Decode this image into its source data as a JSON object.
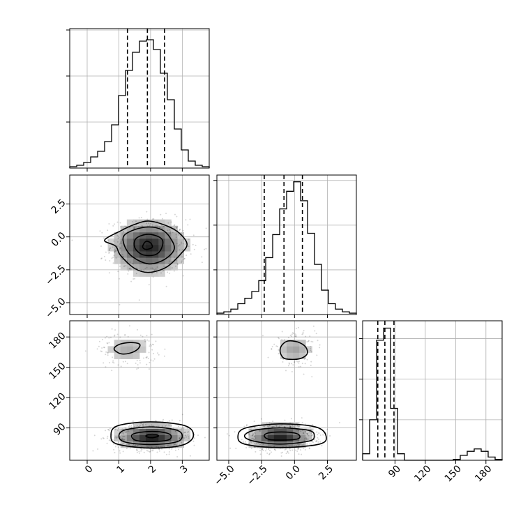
{
  "chart_data": {
    "type": "corner",
    "title": "",
    "parameters": [
      {
        "label": "",
        "range": [
          -0.55,
          3.85
        ],
        "ticks": [
          {
            "v": 0,
            "t": "0"
          },
          {
            "v": 1,
            "t": "1"
          },
          {
            "v": 2,
            "t": "2"
          },
          {
            "v": 3,
            "t": "3"
          }
        ]
      },
      {
        "label": "",
        "range": [
          -5.9,
          4.7
        ],
        "ticks": [
          {
            "v": -5.0,
            "t": "−5.0"
          },
          {
            "v": -2.5,
            "t": "−2.5"
          },
          {
            "v": 0.0,
            "t": "0.0"
          },
          {
            "v": 2.5,
            "t": "2.5"
          }
        ]
      },
      {
        "label": "",
        "range": [
          58,
          196
        ],
        "ticks": [
          {
            "v": 90,
            "t": "90"
          },
          {
            "v": 120,
            "t": "120"
          },
          {
            "v": 150,
            "t": "150"
          },
          {
            "v": 180,
            "t": "180"
          }
        ]
      }
    ],
    "histograms": [
      {
        "param": 0,
        "bin_edges": [
          -0.55,
          -0.33,
          -0.11,
          0.11,
          0.33,
          0.55,
          0.77,
          0.99,
          1.21,
          1.43,
          1.65,
          1.87,
          2.09,
          2.31,
          2.53,
          2.75,
          2.97,
          3.19,
          3.41,
          3.63,
          3.85
        ],
        "counts": [
          1,
          2,
          4,
          8,
          12,
          19,
          31,
          52,
          70,
          83,
          91,
          92,
          85,
          68,
          49,
          28,
          13,
          5,
          2,
          1
        ],
        "ymax": 100,
        "quantiles": [
          1.27,
          1.9,
          2.44
        ],
        "grid_y": [
          33,
          66,
          99
        ]
      },
      {
        "param": 1,
        "bin_edges": [
          -5.9,
          -5.37,
          -4.84,
          -4.31,
          -3.78,
          -3.25,
          -2.72,
          -2.19,
          -1.66,
          -1.13,
          -0.6,
          -0.07,
          0.46,
          0.99,
          1.52,
          2.05,
          2.58,
          3.11,
          3.64,
          4.17,
          4.7
        ],
        "counts": [
          1,
          2,
          4,
          8,
          12,
          17,
          25,
          42,
          59,
          78,
          91,
          98,
          84,
          60,
          37,
          18,
          8,
          4,
          2,
          1
        ],
        "ymax": 103,
        "quantiles": [
          -2.3,
          -0.8,
          0.6
        ],
        "grid_y": [
          33,
          66,
          99
        ]
      },
      {
        "param": 2,
        "bin_edges": [
          58,
          64.9,
          71.8,
          78.7,
          85.6,
          92.5,
          99.4,
          106.3,
          113.2,
          120.1,
          127,
          133.9,
          140.8,
          147.7,
          154.6,
          161.5,
          168.4,
          175.3,
          182.2,
          189.1,
          196
        ],
        "counts": [
          8,
          50,
          148,
          163,
          64,
          8,
          0,
          0,
          0,
          0,
          0,
          0,
          0,
          1,
          6,
          11,
          14,
          11,
          4,
          1
        ],
        "ymax": 172,
        "quantiles": [
          73,
          80,
          89
        ],
        "grid_y": [
          50,
          100,
          150
        ]
      }
    ],
    "joint": [
      {
        "x_param": 0,
        "y_param": 1,
        "clusters": [
          {
            "mx": 1.95,
            "my": -0.75,
            "sx": 0.6,
            "sy": 1.05,
            "n": 1500
          }
        ],
        "contours": [
          [
            [
              1.95,
              1.2
            ],
            [
              1.5,
              0.95
            ],
            [
              1.05,
              0.45
            ],
            [
              0.55,
              -0.25
            ],
            [
              0.9,
              -0.7
            ],
            [
              1.05,
              -1.4
            ],
            [
              1.5,
              -2.4
            ],
            [
              1.95,
              -2.7
            ],
            [
              2.5,
              -2.3
            ],
            [
              2.95,
              -1.3
            ],
            [
              3.15,
              -0.55
            ],
            [
              2.9,
              0.3
            ],
            [
              2.5,
              0.85
            ]
          ],
          [
            [
              1.95,
              0.75
            ],
            [
              1.5,
              0.55
            ],
            [
              1.15,
              0.05
            ],
            [
              1.2,
              -0.8
            ],
            [
              1.45,
              -1.55
            ],
            [
              1.95,
              -2.05
            ],
            [
              2.45,
              -1.7
            ],
            [
              2.75,
              -0.9
            ],
            [
              2.6,
              0.0
            ],
            [
              2.35,
              0.55
            ]
          ],
          [
            [
              1.95,
              0.2
            ],
            [
              1.55,
              -0.1
            ],
            [
              1.5,
              -0.8
            ],
            [
              1.75,
              -1.35
            ],
            [
              2.15,
              -1.35
            ],
            [
              2.35,
              -0.85
            ],
            [
              2.35,
              -0.15
            ]
          ],
          [
            [
              1.85,
              -0.35
            ],
            [
              1.75,
              -0.75
            ],
            [
              1.85,
              -0.95
            ],
            [
              2.05,
              -0.8
            ],
            [
              2.0,
              -0.45
            ]
          ]
        ]
      },
      {
        "x_param": 0,
        "y_param": 2,
        "clusters": [
          {
            "mx": 2.05,
            "my": 81,
            "sx": 0.58,
            "sy": 6.5,
            "n": 2000
          },
          {
            "mx": 1.3,
            "my": 168,
            "sx": 0.45,
            "sy": 8.0,
            "n": 500
          }
        ],
        "contours": [
          [
            [
              0.75,
              82
            ],
            [
              0.95,
              74
            ],
            [
              2.0,
              70
            ],
            [
              3.0,
              73
            ],
            [
              3.35,
              82
            ],
            [
              3.1,
              92
            ],
            [
              2.0,
              96
            ],
            [
              0.95,
              92
            ]
          ],
          [
            [
              1.0,
              82
            ],
            [
              1.2,
              76
            ],
            [
              2.0,
              73.5
            ],
            [
              2.8,
              76
            ],
            [
              3.0,
              82
            ],
            [
              2.8,
              88
            ],
            [
              2.0,
              91
            ],
            [
              1.2,
              88
            ]
          ],
          [
            [
              1.4,
              82
            ],
            [
              1.55,
              77.5
            ],
            [
              2.05,
              76.5
            ],
            [
              2.55,
              78
            ],
            [
              2.65,
              82
            ],
            [
              2.5,
              85
            ],
            [
              2.05,
              86.5
            ],
            [
              1.55,
              85
            ]
          ],
          [
            [
              1.85,
              82
            ],
            [
              1.95,
              80.5
            ],
            [
              2.1,
              80.5
            ],
            [
              2.25,
              82
            ],
            [
              2.15,
              83.5
            ],
            [
              1.95,
              83.5
            ]
          ],
          [
            [
              1.35,
              164
            ],
            [
              1.05,
              163.5
            ],
            [
              0.85,
              168
            ],
            [
              1.0,
              172.5
            ],
            [
              1.35,
              174.5
            ],
            [
              1.65,
              173
            ],
            [
              1.6,
              168
            ]
          ]
        ]
      },
      {
        "x_param": 1,
        "y_param": 2,
        "clusters": [
          {
            "mx": -1.1,
            "my": 81,
            "sx": 1.25,
            "sy": 6.5,
            "n": 2000
          },
          {
            "mx": 0.0,
            "my": 168,
            "sx": 0.8,
            "sy": 8.0,
            "n": 500
          }
        ],
        "contours": [
          [
            [
              -4.3,
              82
            ],
            [
              -3.8,
              74
            ],
            [
              -1.1,
              70.5
            ],
            [
              1.9,
              74
            ],
            [
              2.4,
              82
            ],
            [
              1.6,
              91
            ],
            [
              -1.1,
              94
            ],
            [
              -3.7,
              90
            ]
          ],
          [
            [
              -3.8,
              82
            ],
            [
              -3.1,
              77
            ],
            [
              -1.1,
              74
            ],
            [
              1.1,
              77
            ],
            [
              1.5,
              82
            ],
            [
              1.1,
              87.5
            ],
            [
              -1.1,
              90
            ],
            [
              -3.1,
              87.5
            ]
          ],
          [
            [
              -2.3,
              82
            ],
            [
              -1.9,
              78.5
            ],
            [
              -0.8,
              78
            ],
            [
              0.2,
              79
            ],
            [
              0.4,
              82
            ],
            [
              0.0,
              85
            ],
            [
              -1.0,
              86
            ],
            [
              -2.0,
              85
            ]
          ],
          [
            [
              -0.9,
              160
            ],
            [
              -0.5,
              158
            ],
            [
              0.4,
              158.5
            ],
            [
              0.95,
              163
            ],
            [
              0.85,
              170
            ],
            [
              0.25,
              175
            ],
            [
              -0.5,
              176
            ],
            [
              -0.95,
              172
            ],
            [
              -1.1,
              166
            ]
          ]
        ]
      }
    ],
    "grid": true
  }
}
